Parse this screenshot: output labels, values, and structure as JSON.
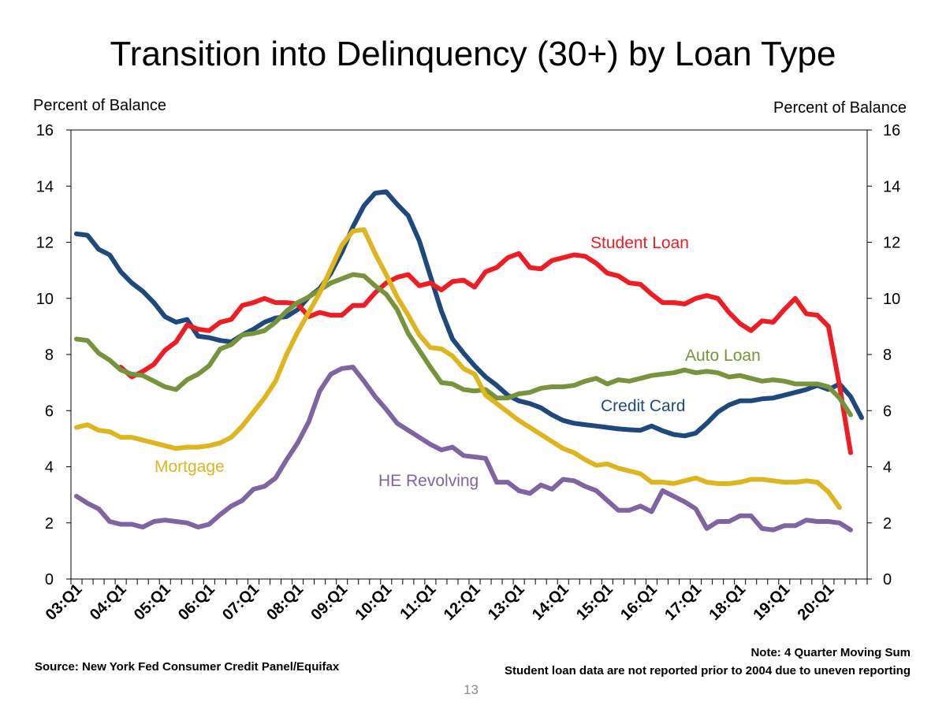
{
  "chart_data": {
    "type": "line",
    "title": "Transition into Delinquency (30+) by Loan Type",
    "ylabel_left": "Percent of Balance",
    "ylabel_right": "Percent of Balance",
    "ylim": [
      0,
      16
    ],
    "yticks": [
      "0",
      "2",
      "4",
      "6",
      "8",
      "10",
      "12",
      "14",
      "16"
    ],
    "x_tick_labels": [
      "03:Q1",
      "04:Q1",
      "05:Q1",
      "06:Q1",
      "07:Q1",
      "08:Q1",
      "09:Q1",
      "10:Q1",
      "11:Q1",
      "12:Q1",
      "13:Q1",
      "14:Q1",
      "15:Q1",
      "16:Q1",
      "17:Q1",
      "18:Q1",
      "19:Q1",
      "20:Q1"
    ],
    "x_tick_index": [
      0,
      4,
      8,
      12,
      16,
      20,
      24,
      28,
      32,
      36,
      40,
      44,
      48,
      52,
      56,
      60,
      64,
      68
    ],
    "x_count": 72,
    "series": [
      {
        "name": "Credit Card",
        "label": "Credit Card",
        "color": "#1F497D",
        "start": 0,
        "values": [
          12.3,
          12.25,
          11.75,
          11.55,
          10.95,
          10.55,
          10.25,
          9.85,
          9.35,
          9.15,
          9.25,
          8.65,
          8.6,
          8.5,
          8.45,
          8.7,
          8.9,
          9.15,
          9.3,
          9.35,
          9.6,
          10.05,
          10.35,
          10.9,
          11.65,
          12.55,
          13.3,
          13.75,
          13.8,
          13.35,
          12.95,
          12.05,
          10.8,
          9.55,
          8.55,
          8.05,
          7.6,
          7.2,
          6.9,
          6.55,
          6.35,
          6.25,
          6.1,
          5.85,
          5.65,
          5.55,
          5.5,
          5.45,
          5.4,
          5.35,
          5.32,
          5.3,
          5.45,
          5.28,
          5.15,
          5.1,
          5.2,
          5.55,
          5.95,
          6.2,
          6.35,
          6.35,
          6.42,
          6.45,
          6.55,
          6.65,
          6.75,
          6.9,
          6.75,
          6.95,
          6.5,
          5.75
        ]
      },
      {
        "name": "Student Loan",
        "label": "Student Loan",
        "color": "#EE1C23",
        "start": 4,
        "values": [
          7.55,
          7.2,
          7.4,
          7.65,
          8.15,
          8.45,
          9.05,
          8.9,
          8.85,
          9.15,
          9.25,
          9.75,
          9.85,
          10.0,
          9.85,
          9.85,
          9.8,
          9.35,
          9.5,
          9.4,
          9.4,
          9.75,
          9.75,
          10.2,
          10.55,
          10.75,
          10.85,
          10.45,
          10.55,
          10.3,
          10.6,
          10.65,
          10.4,
          10.95,
          11.1,
          11.45,
          11.6,
          11.1,
          11.05,
          11.35,
          11.45,
          11.55,
          11.5,
          11.25,
          10.9,
          10.8,
          10.55,
          10.5,
          10.15,
          9.85,
          9.85,
          9.8,
          10.0,
          10.1,
          10.0,
          9.5,
          9.1,
          8.85,
          9.2,
          9.15,
          9.6,
          10.0,
          9.45,
          9.4,
          9.0,
          6.9,
          4.5
        ]
      },
      {
        "name": "Auto Loan",
        "label": "Auto Loan",
        "color": "#77933C",
        "start": 0,
        "values": [
          8.55,
          8.5,
          8.05,
          7.8,
          7.45,
          7.3,
          7.25,
          7.05,
          6.85,
          6.75,
          7.1,
          7.3,
          7.6,
          8.2,
          8.35,
          8.7,
          8.75,
          8.85,
          9.15,
          9.55,
          9.85,
          10.05,
          10.3,
          10.55,
          10.7,
          10.85,
          10.8,
          10.45,
          10.15,
          9.6,
          8.75,
          8.15,
          7.55,
          7.0,
          6.95,
          6.75,
          6.7,
          6.75,
          6.45,
          6.45,
          6.6,
          6.65,
          6.8,
          6.85,
          6.85,
          6.9,
          7.05,
          7.15,
          6.95,
          7.1,
          7.05,
          7.15,
          7.25,
          7.3,
          7.35,
          7.45,
          7.35,
          7.4,
          7.35,
          7.2,
          7.25,
          7.15,
          7.05,
          7.1,
          7.05,
          6.95,
          6.95,
          6.95,
          6.85,
          6.45,
          5.85
        ]
      },
      {
        "name": "Mortgage",
        "label": "Mortgage",
        "color": "#DDB51E",
        "start": 0,
        "values": [
          5.4,
          5.5,
          5.3,
          5.25,
          5.05,
          5.05,
          4.95,
          4.85,
          4.75,
          4.65,
          4.7,
          4.7,
          4.75,
          4.85,
          5.05,
          5.45,
          5.95,
          6.45,
          7.05,
          8.0,
          8.8,
          9.5,
          10.2,
          11.05,
          11.9,
          12.4,
          12.45,
          11.6,
          10.85,
          10.05,
          9.4,
          8.7,
          8.25,
          8.2,
          7.95,
          7.5,
          7.3,
          6.55,
          6.25,
          5.95,
          5.65,
          5.4,
          5.15,
          4.9,
          4.65,
          4.5,
          4.25,
          4.05,
          4.1,
          3.95,
          3.85,
          3.75,
          3.45,
          3.45,
          3.4,
          3.5,
          3.6,
          3.45,
          3.4,
          3.4,
          3.45,
          3.55,
          3.55,
          3.5,
          3.45,
          3.45,
          3.5,
          3.45,
          3.1,
          2.55
        ]
      },
      {
        "name": "HE Revolving",
        "label": "HE Revolving",
        "color": "#8064A2",
        "start": 0,
        "values": [
          2.95,
          2.7,
          2.5,
          2.05,
          1.95,
          1.95,
          1.85,
          2.05,
          2.1,
          2.05,
          2.0,
          1.85,
          1.95,
          2.3,
          2.6,
          2.8,
          3.2,
          3.3,
          3.6,
          4.25,
          4.85,
          5.6,
          6.7,
          7.3,
          7.5,
          7.55,
          7.05,
          6.5,
          6.05,
          5.55,
          5.3,
          5.05,
          4.8,
          4.6,
          4.7,
          4.4,
          4.35,
          4.3,
          3.45,
          3.45,
          3.15,
          3.05,
          3.35,
          3.2,
          3.55,
          3.5,
          3.3,
          3.15,
          2.8,
          2.45,
          2.45,
          2.6,
          2.4,
          3.15,
          2.95,
          2.75,
          2.5,
          1.8,
          2.05,
          2.05,
          2.25,
          2.25,
          1.8,
          1.75,
          1.9,
          1.9,
          2.1,
          2.05,
          2.05,
          2.0,
          1.75
        ]
      }
    ]
  },
  "source": "Source: New York Fed Consumer Credit Panel/Equifax",
  "note_1": "Note: 4 Quarter Moving Sum",
  "note_2": "Student loan data are not reported prior to 2004 due to uneven reporting",
  "page_number": "13"
}
